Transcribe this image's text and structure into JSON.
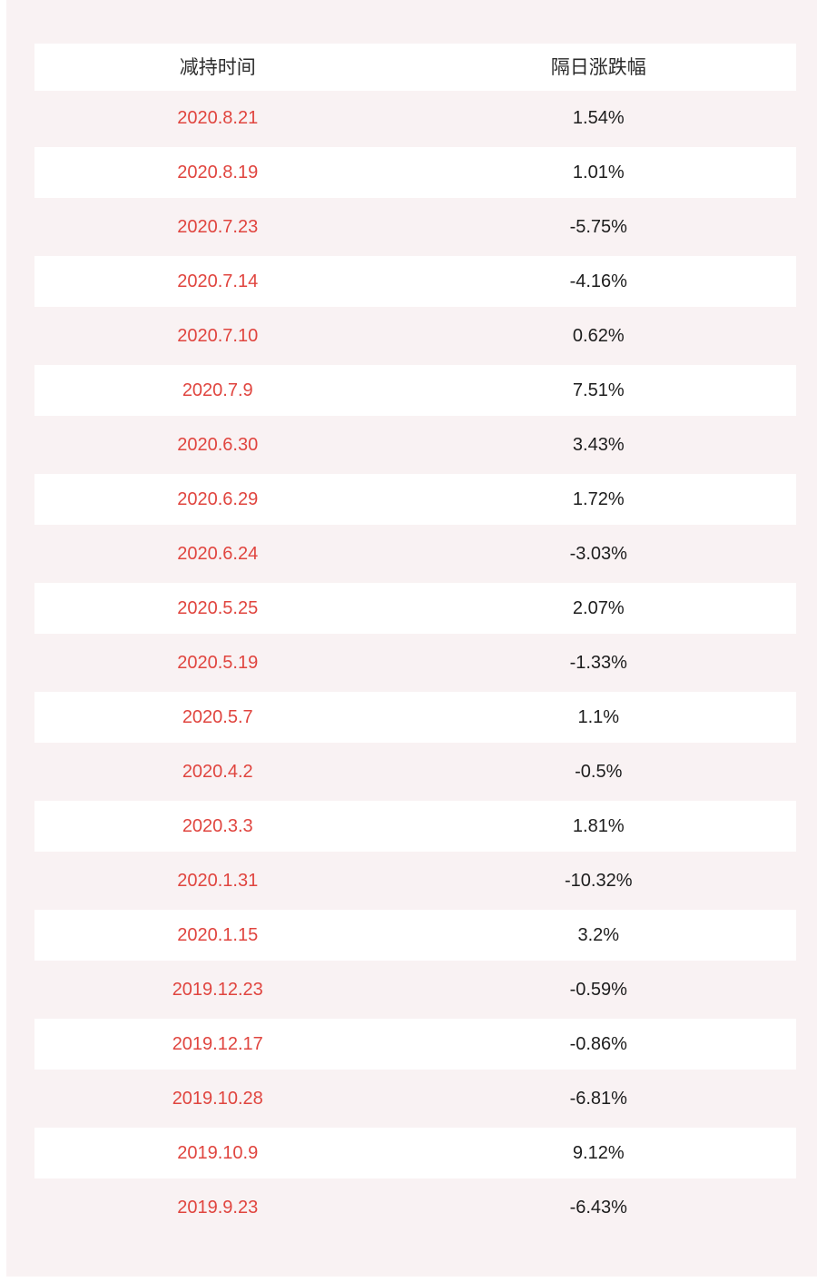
{
  "colors": {
    "page_background": "#f9f2f3",
    "row_white": "#ffffff",
    "date_red": "#e0453f",
    "value_text": "#1d1d1d",
    "header_text": "#2b2b2b"
  },
  "chart_data": {
    "type": "table",
    "columns": [
      "减持时间",
      "隔日涨跌幅"
    ],
    "rows": [
      [
        "2020.8.21",
        "1.54%"
      ],
      [
        "2020.8.19",
        "1.01%"
      ],
      [
        "2020.7.23",
        "-5.75%"
      ],
      [
        "2020.7.14",
        "-4.16%"
      ],
      [
        "2020.7.10",
        "0.62%"
      ],
      [
        "2020.7.9",
        "7.51%"
      ],
      [
        "2020.6.30",
        "3.43%"
      ],
      [
        "2020.6.29",
        "1.72%"
      ],
      [
        "2020.6.24",
        "-3.03%"
      ],
      [
        "2020.5.25",
        "2.07%"
      ],
      [
        "2020.5.19",
        "-1.33%"
      ],
      [
        "2020.5.7",
        "1.1%"
      ],
      [
        "2020.4.2",
        "-0.5%"
      ],
      [
        "2020.3.3",
        "1.81%"
      ],
      [
        "2020.1.31",
        "-10.32%"
      ],
      [
        "2020.1.15",
        "3.2%"
      ],
      [
        "2019.12.23",
        "-0.59%"
      ],
      [
        "2019.12.17",
        "-0.86%"
      ],
      [
        "2019.10.28",
        "-6.81%"
      ],
      [
        "2019.10.9",
        "9.12%"
      ],
      [
        "2019.9.23",
        "-6.43%"
      ]
    ],
    "title": "",
    "legend": false,
    "layout": "two-column centered table, alternating pink/white row stripes"
  }
}
